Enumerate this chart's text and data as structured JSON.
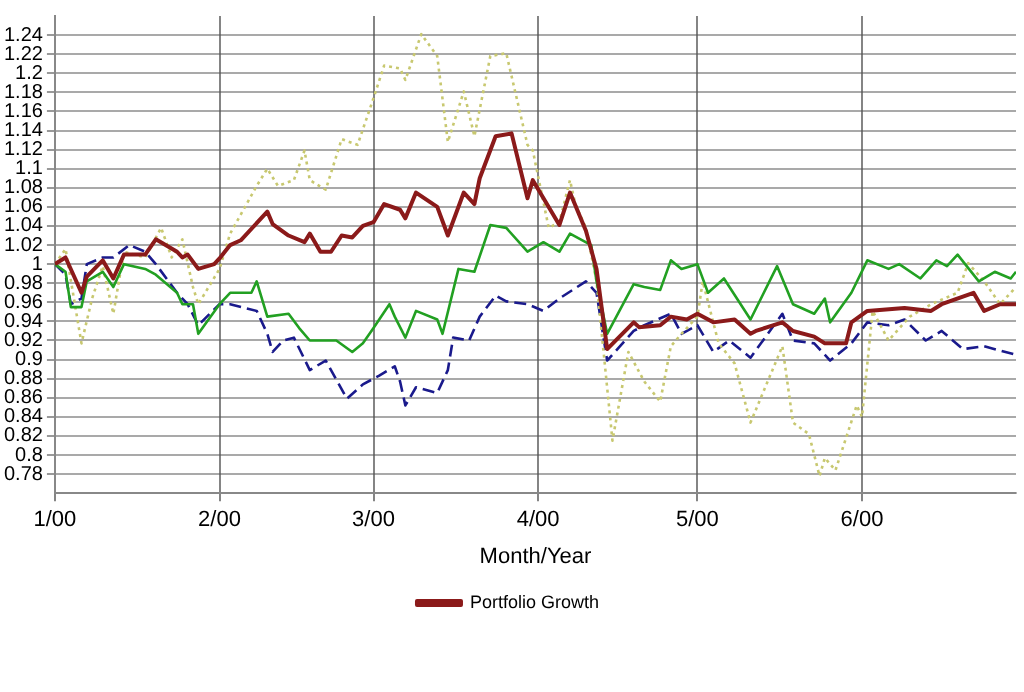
{
  "chart_data": {
    "type": "line",
    "xlabel": "Month/Year",
    "xlim": [
      "2000-01-01",
      "2000-06-30"
    ],
    "xticks": [
      {
        "value": "2000-01-01",
        "label": "1/00"
      },
      {
        "value": "2000-02-01",
        "label": "2/00"
      },
      {
        "value": "2000-03-01",
        "label": "3/00"
      },
      {
        "value": "2000-04-01",
        "label": "4/00"
      },
      {
        "value": "2000-05-01",
        "label": "5/00"
      },
      {
        "value": "2000-06-01",
        "label": "6/00"
      }
    ],
    "ylim": [
      0.76,
      1.26
    ],
    "yticks": [
      0.78,
      0.8,
      0.82,
      0.84,
      0.86,
      0.88,
      0.9,
      0.92,
      0.94,
      0.96,
      0.98,
      1,
      1.02,
      1.04,
      1.06,
      1.08,
      1.1,
      1.12,
      1.14,
      1.16,
      1.18,
      1.2,
      1.22,
      1.24
    ],
    "grid": true,
    "legend": "bottom",
    "marker": "none",
    "series": [
      {
        "name": "Portfolio Growth",
        "color": "#8b1a1a",
        "line_style": "solid",
        "x": [
          "2000-01-01",
          "2000-01-03",
          "2000-01-06",
          "2000-01-07",
          "2000-01-10",
          "2000-01-12",
          "2000-01-14",
          "2000-01-18",
          "2000-01-20",
          "2000-01-24",
          "2000-01-25",
          "2000-01-26",
          "2000-01-28",
          "2000-01-31",
          "2000-02-01",
          "2000-02-03",
          "2000-02-05",
          "2000-02-10",
          "2000-02-11",
          "2000-02-14",
          "2000-02-17",
          "2000-02-18",
          "2000-02-20",
          "2000-02-22",
          "2000-02-24",
          "2000-02-26",
          "2000-02-28",
          "2000-03-01",
          "2000-03-03",
          "2000-03-06",
          "2000-03-07",
          "2000-03-09",
          "2000-03-13",
          "2000-03-15",
          "2000-03-18",
          "2000-03-20",
          "2000-03-21",
          "2000-03-24",
          "2000-03-27",
          "2000-03-30",
          "2000-03-31",
          "2000-04-05",
          "2000-04-07",
          "2000-04-10",
          "2000-04-12",
          "2000-04-14",
          "2000-04-19",
          "2000-04-20",
          "2000-04-24",
          "2000-04-26",
          "2000-04-29",
          "2000-05-01",
          "2000-05-04",
          "2000-05-08",
          "2000-05-11",
          "2000-05-12",
          "2000-05-17",
          "2000-05-19",
          "2000-05-23",
          "2000-05-25",
          "2000-05-29",
          "2000-05-30",
          "2000-06-02",
          "2000-06-09",
          "2000-06-14",
          "2000-06-16",
          "2000-06-22",
          "2000-06-24",
          "2000-06-27",
          "2000-06-30"
        ],
        "values": [
          1.0,
          1.007,
          0.97,
          0.987,
          1.004,
          0.985,
          1.01,
          1.01,
          1.026,
          1.013,
          1.007,
          1.01,
          0.995,
          1.0,
          1.006,
          1.02,
          1.025,
          1.055,
          1.042,
          1.03,
          1.023,
          1.032,
          1.013,
          1.013,
          1.03,
          1.028,
          1.04,
          1.044,
          1.063,
          1.057,
          1.048,
          1.075,
          1.06,
          1.03,
          1.075,
          1.063,
          1.09,
          1.134,
          1.137,
          1.069,
          1.088,
          1.041,
          1.075,
          1.035,
          0.995,
          0.911,
          0.939,
          0.934,
          0.936,
          0.945,
          0.942,
          0.948,
          0.939,
          0.942,
          0.927,
          0.93,
          0.939,
          0.93,
          0.924,
          0.917,
          0.917,
          0.939,
          0.951,
          0.954,
          0.951,
          0.958,
          0.97,
          0.951,
          0.958,
          0.958
        ]
      },
      {
        "color": "#22a022",
        "line_style": "solid",
        "x": [
          "2000-01-01",
          "2000-01-03",
          "2000-01-04",
          "2000-01-06",
          "2000-01-07",
          "2000-01-10",
          "2000-01-12",
          "2000-01-14",
          "2000-01-18",
          "2000-01-20",
          "2000-01-24",
          "2000-01-25",
          "2000-01-27",
          "2000-01-28",
          "2000-02-01",
          "2000-02-03",
          "2000-02-07",
          "2000-02-08",
          "2000-02-10",
          "2000-02-14",
          "2000-02-16",
          "2000-02-18",
          "2000-02-23",
          "2000-02-26",
          "2000-02-28",
          "2000-03-01",
          "2000-03-04",
          "2000-03-05",
          "2000-03-07",
          "2000-03-09",
          "2000-03-13",
          "2000-03-14",
          "2000-03-17",
          "2000-03-20",
          "2000-03-23",
          "2000-03-26",
          "2000-03-30",
          "2000-04-02",
          "2000-04-05",
          "2000-04-07",
          "2000-04-11",
          "2000-04-12",
          "2000-04-14",
          "2000-04-19",
          "2000-04-21",
          "2000-04-24",
          "2000-04-26",
          "2000-04-28",
          "2000-05-01",
          "2000-05-03",
          "2000-05-06",
          "2000-05-11",
          "2000-05-16",
          "2000-05-19",
          "2000-05-23",
          "2000-05-25",
          "2000-05-26",
          "2000-05-30",
          "2000-06-02",
          "2000-06-06",
          "2000-06-08",
          "2000-06-12",
          "2000-06-15",
          "2000-06-17",
          "2000-06-19",
          "2000-06-23",
          "2000-06-26",
          "2000-06-29",
          "2000-06-30"
        ],
        "values": [
          1.0,
          0.992,
          0.955,
          0.955,
          0.982,
          0.992,
          0.976,
          1.0,
          0.995,
          0.989,
          0.97,
          0.958,
          0.958,
          0.927,
          0.958,
          0.97,
          0.97,
          0.982,
          0.945,
          0.948,
          0.933,
          0.92,
          0.92,
          0.908,
          0.917,
          0.933,
          0.958,
          0.945,
          0.923,
          0.951,
          0.942,
          0.927,
          0.995,
          0.992,
          1.041,
          1.038,
          1.013,
          1.023,
          1.013,
          1.032,
          1.02,
          0.982,
          0.927,
          0.979,
          0.976,
          0.973,
          1.004,
          0.995,
          1.0,
          0.97,
          0.985,
          0.942,
          0.998,
          0.958,
          0.948,
          0.964,
          0.939,
          0.97,
          1.004,
          0.995,
          1.0,
          0.985,
          1.004,
          0.998,
          1.01,
          0.982,
          0.992,
          0.985,
          0.992
        ]
      },
      {
        "color": "#c8c870",
        "line_style": "dotted",
        "x": [
          "2000-01-01",
          "2000-01-03",
          "2000-01-06",
          "2000-01-08",
          "2000-01-10",
          "2000-01-12",
          "2000-01-14",
          "2000-01-18",
          "2000-01-21",
          "2000-01-23",
          "2000-01-25",
          "2000-01-27",
          "2000-01-28",
          "2000-02-01",
          "2000-02-03",
          "2000-02-08",
          "2000-02-10",
          "2000-02-12",
          "2000-02-15",
          "2000-02-17",
          "2000-02-18",
          "2000-02-21",
          "2000-02-24",
          "2000-02-27",
          "2000-03-01",
          "2000-03-03",
          "2000-03-06",
          "2000-03-07",
          "2000-03-10",
          "2000-03-13",
          "2000-03-15",
          "2000-03-18",
          "2000-03-20",
          "2000-03-23",
          "2000-03-26",
          "2000-03-30",
          "2000-03-31",
          "2000-04-03",
          "2000-04-05",
          "2000-04-07",
          "2000-04-08",
          "2000-04-10",
          "2000-04-12",
          "2000-04-15",
          "2000-04-18",
          "2000-04-21",
          "2000-04-24",
          "2000-04-26",
          "2000-04-28",
          "2000-05-01",
          "2000-05-02",
          "2000-05-05",
          "2000-05-08",
          "2000-05-11",
          "2000-05-17",
          "2000-05-19",
          "2000-05-22",
          "2000-05-24",
          "2000-05-25",
          "2000-05-27",
          "2000-05-31",
          "2000-06-01",
          "2000-06-03",
          "2000-06-06",
          "2000-06-10",
          "2000-06-14",
          "2000-06-19",
          "2000-06-21",
          "2000-06-24",
          "2000-06-27",
          "2000-06-30"
        ],
        "values": [
          1.0,
          1.016,
          0.917,
          0.964,
          0.998,
          0.948,
          1.013,
          1.007,
          1.038,
          1.007,
          1.026,
          0.976,
          0.958,
          0.995,
          1.032,
          1.082,
          1.1,
          1.082,
          1.088,
          1.119,
          1.088,
          1.078,
          1.131,
          1.125,
          1.174,
          1.208,
          1.205,
          1.193,
          1.241,
          1.218,
          1.128,
          1.181,
          1.134,
          1.218,
          1.221,
          1.125,
          1.119,
          1.038,
          1.044,
          1.088,
          1.063,
          1.038,
          0.982,
          0.815,
          0.908,
          0.877,
          0.856,
          0.914,
          0.927,
          0.945,
          0.982,
          0.917,
          0.896,
          0.834,
          0.914,
          0.834,
          0.822,
          0.778,
          0.797,
          0.784,
          0.852,
          0.84,
          0.951,
          0.92,
          0.945,
          0.958,
          0.97,
          1.001,
          0.982,
          0.958,
          0.976
        ]
      },
      {
        "color": "#1a1a8c",
        "line_style": "dashed",
        "x": [
          "2000-01-01",
          "2000-01-03",
          "2000-01-04",
          "2000-01-06",
          "2000-01-07",
          "2000-01-10",
          "2000-01-12",
          "2000-01-15",
          "2000-01-18",
          "2000-01-20",
          "2000-01-24",
          "2000-01-26",
          "2000-01-28",
          "2000-02-01",
          "2000-02-03",
          "2000-02-08",
          "2000-02-10",
          "2000-02-11",
          "2000-02-13",
          "2000-02-15",
          "2000-02-18",
          "2000-02-21",
          "2000-02-25",
          "2000-02-28",
          "2000-03-02",
          "2000-03-05",
          "2000-03-06",
          "2000-03-07",
          "2000-03-09",
          "2000-03-13",
          "2000-03-15",
          "2000-03-16",
          "2000-03-19",
          "2000-03-21",
          "2000-03-24",
          "2000-03-26",
          "2000-03-30",
          "2000-04-02",
          "2000-04-05",
          "2000-04-10",
          "2000-04-12",
          "2000-04-14",
          "2000-04-19",
          "2000-04-21",
          "2000-04-26",
          "2000-04-28",
          "2000-05-01",
          "2000-05-04",
          "2000-05-07",
          "2000-05-11",
          "2000-05-17",
          "2000-05-19",
          "2000-05-23",
          "2000-05-26",
          "2000-05-30",
          "2000-06-02",
          "2000-06-06",
          "2000-06-09",
          "2000-06-13",
          "2000-06-16",
          "2000-06-20",
          "2000-06-24",
          "2000-06-30"
        ],
        "values": [
          1.0,
          0.989,
          0.958,
          0.964,
          1.0,
          1.007,
          1.007,
          1.02,
          1.013,
          1.0,
          0.97,
          0.958,
          0.936,
          0.958,
          0.958,
          0.951,
          0.927,
          0.908,
          0.92,
          0.923,
          0.889,
          0.899,
          0.859,
          0.874,
          0.883,
          0.893,
          0.877,
          0.852,
          0.871,
          0.865,
          0.889,
          0.923,
          0.92,
          0.945,
          0.967,
          0.961,
          0.958,
          0.951,
          0.964,
          0.982,
          0.97,
          0.899,
          0.93,
          0.936,
          0.948,
          0.927,
          0.936,
          0.908,
          0.92,
          0.902,
          0.948,
          0.92,
          0.917,
          0.899,
          0.917,
          0.939,
          0.936,
          0.942,
          0.92,
          0.93,
          0.911,
          0.914,
          0.905
        ]
      }
    ]
  }
}
